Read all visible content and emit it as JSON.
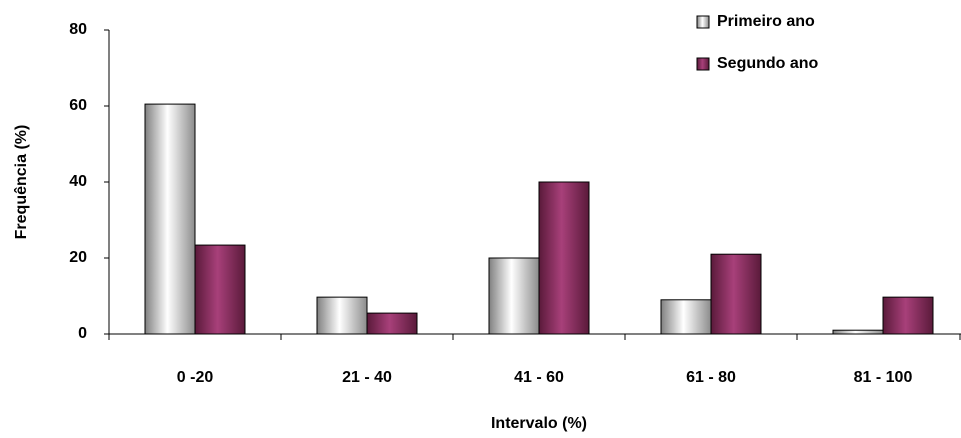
{
  "chart_data": {
    "type": "bar",
    "x_label": "Intervalo (%)",
    "y_label": "Frequência (%)",
    "categories": [
      "0 -20",
      "21 - 40",
      "41 - 60",
      "61 - 80",
      "81 - 100"
    ],
    "series": [
      {
        "name": "Primeiro ano",
        "color": "#c0c0c0",
        "values": [
          60.5,
          9.7,
          20,
          9,
          1
        ]
      },
      {
        "name": "Segundo ano",
        "color": "#993366",
        "values": [
          23.4,
          5.5,
          40,
          21,
          9.7
        ]
      }
    ],
    "ylim": [
      0,
      80
    ],
    "yticks": [
      0,
      20,
      40,
      60,
      80
    ],
    "grid": false,
    "legend": "top-right"
  }
}
